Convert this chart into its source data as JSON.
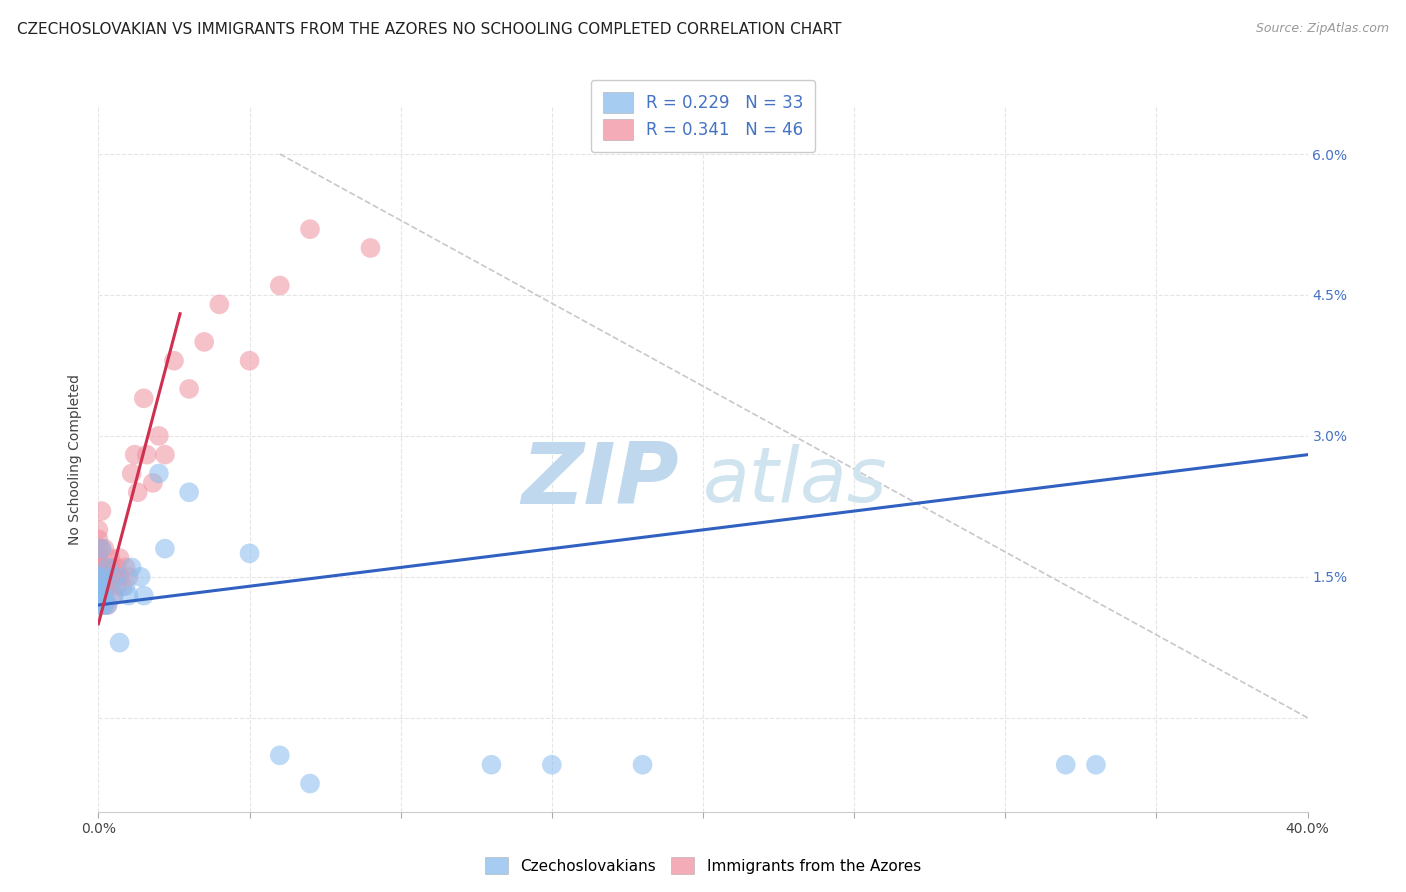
{
  "title": "CZECHOSLOVAKIAN VS IMMIGRANTS FROM THE AZORES NO SCHOOLING COMPLETED CORRELATION CHART",
  "source": "Source: ZipAtlas.com",
  "ylabel": "No Schooling Completed",
  "xlim": [
    0.0,
    0.4
  ],
  "ylim": [
    -0.01,
    0.065
  ],
  "xticks": [
    0.0,
    0.05,
    0.1,
    0.15,
    0.2,
    0.25,
    0.3,
    0.35,
    0.4
  ],
  "xticklabels": [
    "0.0%",
    "",
    "",
    "",
    "",
    "",
    "",
    "",
    "40.0%"
  ],
  "yticks_right": [
    0.0,
    0.015,
    0.03,
    0.045,
    0.06
  ],
  "yticklabels_right": [
    "",
    "1.5%",
    "3.0%",
    "4.5%",
    "6.0%"
  ],
  "legend_r1": "R = 0.229   N = 33",
  "legend_r2": "R = 0.341   N = 46",
  "blue_color": "#88bbee",
  "pink_color": "#f090a0",
  "blue_line_color": "#3060c0",
  "pink_line_color": "#d03050",
  "ref_line_color": "#c8c8c8",
  "watermark_color": "#d5e8f5",
  "blue_scatter_x": [
    0.0,
    0.0,
    0.0,
    0.0,
    0.0,
    0.001,
    0.001,
    0.001,
    0.001,
    0.002,
    0.002,
    0.002,
    0.003,
    0.003,
    0.005,
    0.006,
    0.007,
    0.009,
    0.01,
    0.011,
    0.014,
    0.015,
    0.02,
    0.022,
    0.03,
    0.05,
    0.06,
    0.07,
    0.13,
    0.15,
    0.18,
    0.32,
    0.33
  ],
  "blue_scatter_y": [
    0.012,
    0.013,
    0.0135,
    0.014,
    0.015,
    0.012,
    0.013,
    0.0145,
    0.018,
    0.012,
    0.013,
    0.015,
    0.012,
    0.016,
    0.013,
    0.015,
    0.008,
    0.014,
    0.013,
    0.016,
    0.015,
    0.013,
    0.026,
    0.018,
    0.024,
    0.0175,
    -0.004,
    -0.007,
    -0.005,
    -0.005,
    -0.005,
    -0.005,
    -0.005
  ],
  "pink_scatter_x": [
    0.0,
    0.0,
    0.0,
    0.0,
    0.0,
    0.0,
    0.0,
    0.001,
    0.001,
    0.001,
    0.001,
    0.001,
    0.002,
    0.002,
    0.002,
    0.002,
    0.003,
    0.003,
    0.003,
    0.004,
    0.004,
    0.005,
    0.005,
    0.006,
    0.006,
    0.007,
    0.007,
    0.008,
    0.009,
    0.01,
    0.011,
    0.012,
    0.013,
    0.015,
    0.016,
    0.018,
    0.02,
    0.022,
    0.025,
    0.03,
    0.035,
    0.04,
    0.05,
    0.06,
    0.07,
    0.09
  ],
  "pink_scatter_y": [
    0.012,
    0.014,
    0.016,
    0.017,
    0.018,
    0.019,
    0.02,
    0.013,
    0.015,
    0.016,
    0.018,
    0.022,
    0.012,
    0.014,
    0.016,
    0.018,
    0.012,
    0.014,
    0.015,
    0.016,
    0.017,
    0.013,
    0.015,
    0.014,
    0.016,
    0.015,
    0.017,
    0.014,
    0.016,
    0.015,
    0.026,
    0.028,
    0.024,
    0.034,
    0.028,
    0.025,
    0.03,
    0.028,
    0.038,
    0.035,
    0.04,
    0.044,
    0.038,
    0.046,
    0.052,
    0.05
  ],
  "blue_trend_x": [
    0.0,
    0.4
  ],
  "blue_trend_y": [
    0.012,
    0.028
  ],
  "pink_trend_x": [
    0.0,
    0.027
  ],
  "pink_trend_y": [
    0.01,
    0.043
  ],
  "ref_line_x": [
    0.06,
    0.4
  ],
  "ref_line_y": [
    0.06,
    0.0
  ],
  "grid_color": "#e5e5e5",
  "background_color": "#ffffff",
  "title_fontsize": 11,
  "axis_label_fontsize": 10,
  "tick_fontsize": 10,
  "legend_fontsize": 12
}
